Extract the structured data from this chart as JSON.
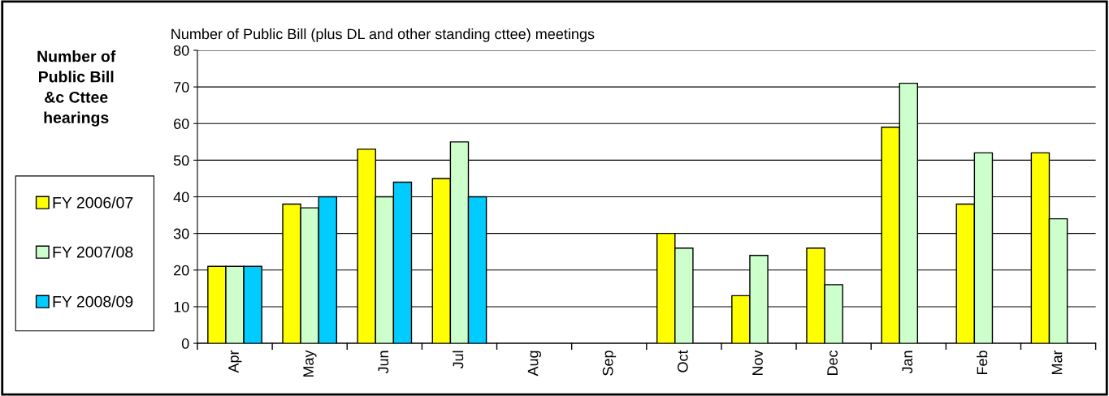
{
  "chart_data": {
    "type": "bar",
    "title": "Number of Public Bill (plus DL and other standing cttee) meetings",
    "ylabel": "Number of\nPublic Bill\n&c Cttee\nhearings",
    "categories": [
      "Apr",
      "May",
      "Jun",
      "Jul",
      "Aug",
      "Sep",
      "Oct",
      "Nov",
      "Dec",
      "Jan",
      "Feb",
      "Mar"
    ],
    "series": [
      {
        "name": "FY 2006/07",
        "color": "#ffff00",
        "values": [
          21,
          38,
          53,
          45,
          null,
          null,
          30,
          13,
          26,
          59,
          38,
          52
        ]
      },
      {
        "name": "FY 2007/08",
        "color": "#ccffcc",
        "values": [
          21,
          37,
          40,
          55,
          null,
          null,
          26,
          24,
          16,
          71,
          52,
          34
        ]
      },
      {
        "name": "FY 2008/09",
        "color": "#00ccff",
        "values": [
          21,
          40,
          44,
          40,
          null,
          null,
          null,
          null,
          null,
          null,
          null,
          null
        ]
      }
    ],
    "ylim": [
      0,
      80
    ],
    "yticks": [
      0,
      10,
      20,
      30,
      40,
      50,
      60,
      70,
      80
    ],
    "grid": "y",
    "legend": "left"
  }
}
